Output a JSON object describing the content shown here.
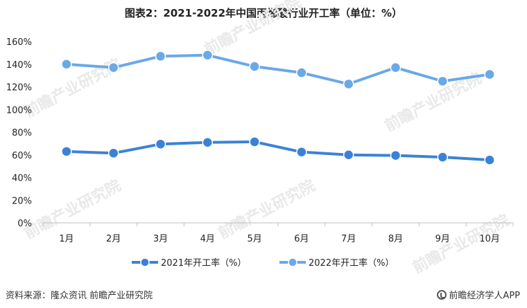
{
  "title": "图表2：2021-2022年中国丙烯酸行业开工率（单位：%）",
  "watermark": "前瞻产业研究院",
  "footer": {
    "source": "资料来源：隆众资讯 前瞻产业研究院",
    "brand": "前瞻经济学人APP"
  },
  "chart_data": {
    "type": "line",
    "categories": [
      "1月",
      "2月",
      "3月",
      "4月",
      "5月",
      "6月",
      "7月",
      "8月",
      "9月",
      "10月"
    ],
    "ylim": [
      0,
      160
    ],
    "yticks": [
      "0%",
      "20%",
      "40%",
      "60%",
      "80%",
      "100%",
      "120%",
      "140%",
      "160%"
    ],
    "grid": false,
    "legend_position": "bottom",
    "series": [
      {
        "name": "2021年开工率（%）",
        "color": "#3b82d6",
        "values": [
          63,
          61.5,
          69.5,
          71,
          71.5,
          62.5,
          60,
          59.5,
          58,
          55.5
        ]
      },
      {
        "name": "2022年开工率（%）",
        "color": "#6aa8e8",
        "values": [
          140,
          137,
          147,
          148,
          138,
          132.5,
          122.5,
          137,
          125,
          131
        ]
      }
    ]
  }
}
